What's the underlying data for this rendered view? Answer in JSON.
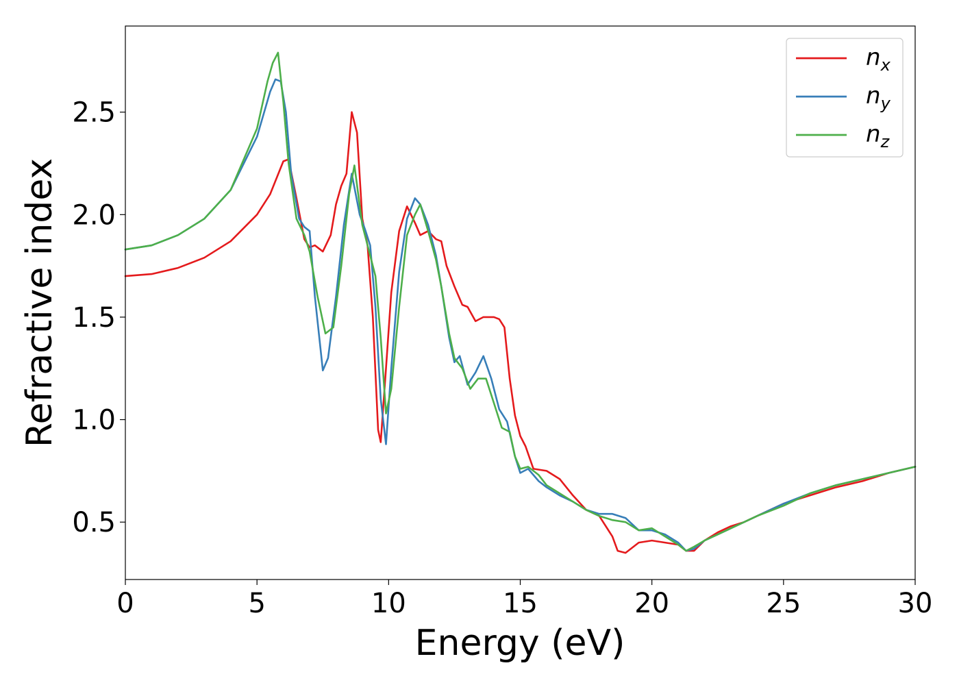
{
  "chart_data": {
    "type": "line",
    "title": "",
    "xlabel": "Energy (eV)",
    "ylabel": "Refractive index",
    "xlim": [
      0,
      30
    ],
    "ylim": [
      0.22,
      2.92
    ],
    "xticks": [
      0,
      5,
      10,
      15,
      20,
      25,
      30
    ],
    "xtick_labels": [
      "0",
      "5",
      "10",
      "15",
      "20",
      "25",
      "30"
    ],
    "yticks": [
      0.5,
      1.0,
      1.5,
      2.0,
      2.5
    ],
    "ytick_labels": [
      "0.5",
      "1.0",
      "1.5",
      "2.0",
      "2.5"
    ],
    "grid": false,
    "legend_position": "top-right",
    "series": [
      {
        "name": "n_x",
        "label_base": "n",
        "label_sub": "x",
        "color": "#e41a1c",
        "x": [
          0,
          1,
          2,
          3,
          4,
          5,
          5.5,
          6.0,
          6.2,
          6.5,
          6.8,
          7.0,
          7.2,
          7.5,
          7.8,
          8.0,
          8.2,
          8.4,
          8.6,
          8.8,
          9.0,
          9.2,
          9.4,
          9.6,
          9.7,
          9.9,
          10.1,
          10.4,
          10.7,
          11.0,
          11.2,
          11.5,
          11.8,
          12.0,
          12.2,
          12.5,
          12.8,
          13.0,
          13.3,
          13.6,
          14.0,
          14.2,
          14.4,
          14.6,
          14.8,
          15.0,
          15.2,
          15.5,
          16.0,
          16.5,
          17.0,
          17.5,
          18.0,
          18.5,
          18.7,
          19.0,
          19.5,
          20.0,
          20.5,
          21.0,
          21.3,
          21.6,
          22.0,
          22.5,
          23.0,
          23.5,
          24.0,
          25.0,
          26.0,
          27.0,
          28.0,
          29.0,
          30.0
        ],
        "y": [
          1.7,
          1.71,
          1.74,
          1.79,
          1.87,
          2.0,
          2.1,
          2.26,
          2.27,
          2.08,
          1.88,
          1.84,
          1.85,
          1.82,
          1.9,
          2.05,
          2.14,
          2.2,
          2.5,
          2.4,
          1.98,
          1.85,
          1.5,
          0.95,
          0.89,
          1.25,
          1.62,
          1.92,
          2.04,
          1.96,
          1.9,
          1.92,
          1.88,
          1.87,
          1.75,
          1.65,
          1.56,
          1.55,
          1.48,
          1.5,
          1.5,
          1.49,
          1.45,
          1.2,
          1.02,
          0.92,
          0.87,
          0.76,
          0.75,
          0.71,
          0.63,
          0.56,
          0.53,
          0.43,
          0.36,
          0.35,
          0.4,
          0.41,
          0.4,
          0.39,
          0.36,
          0.36,
          0.41,
          0.45,
          0.48,
          0.5,
          0.53,
          0.59,
          0.63,
          0.67,
          0.7,
          0.74,
          0.77
        ]
      },
      {
        "name": "n_y",
        "label_base": "n",
        "label_sub": "y",
        "color": "#377eb8",
        "x": [
          0,
          1,
          2,
          3,
          4,
          5,
          5.5,
          5.7,
          5.9,
          6.1,
          6.3,
          6.6,
          6.8,
          7.0,
          7.2,
          7.5,
          7.7,
          8.0,
          8.3,
          8.6,
          8.9,
          9.1,
          9.3,
          9.5,
          9.7,
          9.9,
          10.1,
          10.4,
          10.7,
          11.0,
          11.2,
          11.5,
          11.8,
          12.0,
          12.3,
          12.5,
          12.7,
          13.0,
          13.3,
          13.6,
          13.9,
          14.2,
          14.5,
          14.8,
          15.0,
          15.3,
          15.7,
          16.0,
          16.5,
          17.0,
          17.5,
          18.0,
          18.5,
          19.0,
          19.5,
          20.0,
          20.5,
          21.0,
          21.3,
          21.6,
          22.0,
          22.5,
          23.0,
          24.0,
          25.0,
          26.0,
          27.0,
          28.0,
          29.0,
          30.0
        ],
        "y": [
          1.83,
          1.85,
          1.9,
          1.98,
          2.12,
          2.38,
          2.6,
          2.66,
          2.65,
          2.5,
          2.2,
          1.98,
          1.94,
          1.92,
          1.6,
          1.24,
          1.3,
          1.6,
          1.95,
          2.2,
          2.0,
          1.93,
          1.85,
          1.55,
          1.1,
          0.88,
          1.25,
          1.72,
          1.98,
          2.08,
          2.05,
          1.95,
          1.8,
          1.65,
          1.4,
          1.28,
          1.31,
          1.17,
          1.23,
          1.31,
          1.2,
          1.05,
          0.99,
          0.82,
          0.74,
          0.76,
          0.7,
          0.67,
          0.63,
          0.6,
          0.56,
          0.54,
          0.54,
          0.52,
          0.46,
          0.46,
          0.44,
          0.4,
          0.36,
          0.37,
          0.41,
          0.44,
          0.47,
          0.53,
          0.59,
          0.64,
          0.68,
          0.71,
          0.74,
          0.77
        ]
      },
      {
        "name": "n_z",
        "label_base": "n",
        "label_sub": "z",
        "color": "#4daf4a",
        "x": [
          0,
          1,
          2,
          3,
          4,
          5,
          5.4,
          5.6,
          5.8,
          6.0,
          6.2,
          6.5,
          6.8,
          7.0,
          7.3,
          7.6,
          7.9,
          8.2,
          8.5,
          8.7,
          9.0,
          9.2,
          9.5,
          9.7,
          9.9,
          10.1,
          10.4,
          10.7,
          11.0,
          11.2,
          11.5,
          11.8,
          12.0,
          12.3,
          12.5,
          12.8,
          13.1,
          13.4,
          13.7,
          14.0,
          14.3,
          14.6,
          14.8,
          15.0,
          15.3,
          15.7,
          16.0,
          16.5,
          17.0,
          17.5,
          18.0,
          18.5,
          19.0,
          19.5,
          20.0,
          20.5,
          21.0,
          21.3,
          21.6,
          22.0,
          22.5,
          23.0,
          24.0,
          25.0,
          26.0,
          27.0,
          28.0,
          29.0,
          30.0
        ],
        "y": [
          1.83,
          1.85,
          1.9,
          1.98,
          2.12,
          2.42,
          2.65,
          2.74,
          2.79,
          2.55,
          2.25,
          1.98,
          1.9,
          1.82,
          1.6,
          1.42,
          1.45,
          1.75,
          2.1,
          2.24,
          1.95,
          1.85,
          1.7,
          1.4,
          1.03,
          1.15,
          1.55,
          1.9,
          2.0,
          2.05,
          1.92,
          1.78,
          1.65,
          1.42,
          1.3,
          1.25,
          1.15,
          1.2,
          1.2,
          1.08,
          0.96,
          0.94,
          0.82,
          0.76,
          0.77,
          0.73,
          0.68,
          0.64,
          0.6,
          0.56,
          0.53,
          0.51,
          0.5,
          0.46,
          0.47,
          0.43,
          0.39,
          0.36,
          0.38,
          0.41,
          0.44,
          0.47,
          0.53,
          0.58,
          0.64,
          0.68,
          0.71,
          0.74,
          0.77
        ]
      }
    ]
  }
}
